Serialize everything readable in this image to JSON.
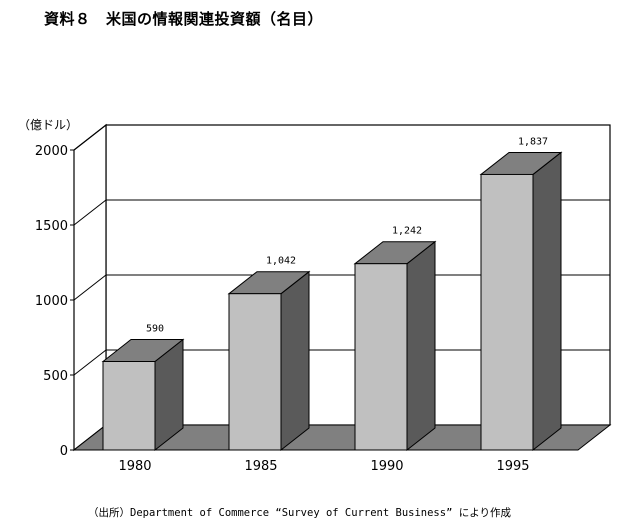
{
  "title": "資料８　米国の情報関連投資額（名目）",
  "source": "（出所）Department of Commerce “Survey of Current Business” により作成",
  "chart_data": {
    "type": "bar",
    "title": "資料８　米国の情報関連投資額（名目）",
    "ylabel": "（億ドル）",
    "xlabel": "",
    "categories": [
      "1980",
      "1985",
      "1990",
      "1995"
    ],
    "values": [
      590,
      1042,
      1242,
      1837
    ],
    "data_labels": [
      "590",
      "1,042",
      "1,242",
      "1,837"
    ],
    "ylim": [
      0,
      2000
    ],
    "yticks": [
      "0",
      "500",
      "1000",
      "1500",
      "2000"
    ],
    "grid": true,
    "style": "3d",
    "colors": {
      "bar_front": "#c0c0c0",
      "bar_side": "#5a5a5a",
      "bar_top": "#808080",
      "floor": "#808080",
      "line": "#000000"
    }
  }
}
